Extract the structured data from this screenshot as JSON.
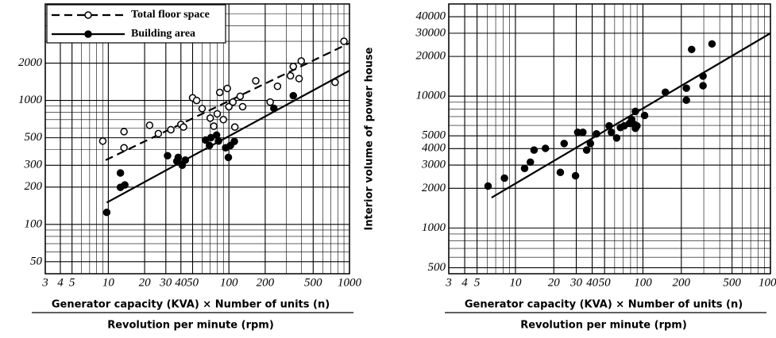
{
  "chart_data": [
    {
      "type": "scatter",
      "xscale": "log",
      "yscale": "log",
      "grid": true,
      "legend": "upper left",
      "xlabel": "Generator capacity (KVA) × Number of units (n)",
      "xlabel_denominator": "Revolution per minute (rpm)",
      "xlim": [
        3,
        1000
      ],
      "xticks": [
        3,
        4,
        5,
        10,
        20,
        30,
        40,
        50,
        100,
        200,
        500,
        1000
      ],
      "xminor": [
        6,
        7,
        8,
        9,
        60,
        70,
        80,
        90,
        300,
        400,
        600,
        700,
        800,
        900
      ],
      "ylim": [
        40,
        6000
      ],
      "yticks": [
        50,
        100,
        200,
        300,
        500,
        1000,
        2000
      ],
      "yminor": [
        60,
        70,
        80,
        90,
        400,
        600,
        700,
        800,
        900,
        3000,
        4000,
        5000
      ],
      "series": [
        {
          "name": "Total floor space",
          "color": "#000000",
          "marker": "open",
          "line": "dashed",
          "x": [
            9,
            13.5,
            13.5,
            22,
            26,
            33,
            40,
            42,
            50,
            54,
            60,
            70,
            75,
            80,
            84,
            90,
            97,
            100,
            108,
            112,
            124,
            130,
            167,
            220,
            253,
            324,
            342,
            398,
            382,
            760,
            900
          ],
          "values": [
            470,
            560,
            415,
            630,
            540,
            580,
            640,
            610,
            1050,
            1000,
            860,
            720,
            620,
            780,
            1160,
            700,
            1250,
            890,
            970,
            610,
            1080,
            890,
            1440,
            970,
            1300,
            1580,
            1880,
            2080,
            1500,
            1400,
            3000
          ],
          "fit_x": [
            9.5,
            1000
          ],
          "fit_y": [
            330,
            2900
          ]
        },
        {
          "name": "Building area",
          "color": "#000000",
          "marker": "filled",
          "line": "solid",
          "x": [
            9.7,
            12.6,
            12.6,
            13.7,
            31,
            37,
            38,
            41,
            43.5,
            64,
            69,
            71,
            79,
            82,
            94,
            99,
            103,
            111,
            236,
            342
          ],
          "values": [
            125,
            199,
            260,
            208,
            358,
            323,
            347,
            300,
            330,
            479,
            433,
            501,
            525,
            470,
            415,
            347,
            433,
            467,
            864,
            1091
          ],
          "fit_x": [
            9.7,
            1000
          ],
          "fit_y": [
            150,
            1740
          ]
        }
      ]
    },
    {
      "type": "scatter",
      "xscale": "log",
      "yscale": "log",
      "grid": true,
      "ylabel": "Interior volume of power house",
      "xlabel": "Generator capacity (KVA) × Number of units (n)",
      "xlabel_denominator": "Revolution per minute (rpm)",
      "xlim": [
        3,
        1000
      ],
      "xticks": [
        3,
        4,
        5,
        10,
        20,
        30,
        40,
        50,
        100,
        200,
        500,
        1000
      ],
      "xminor": [
        6,
        7,
        8,
        9,
        60,
        70,
        80,
        90,
        300,
        400,
        600,
        700,
        800,
        900
      ],
      "ylim": [
        450,
        50000
      ],
      "yticks": [
        500,
        1000,
        2000,
        3000,
        4000,
        5000,
        10000,
        20000,
        30000,
        40000
      ],
      "yminor": [
        600,
        700,
        800,
        900,
        6000,
        7000,
        8000,
        9000
      ],
      "series": [
        {
          "color": "#000000",
          "marker": "filled",
          "line": "solid",
          "x": [
            6.1,
            8.2,
            11.8,
            13.1,
            14,
            17.2,
            22.5,
            24.1,
            29.6,
            30.8,
            33.8,
            36.2,
            38.7,
            43.2,
            54.3,
            56.6,
            62.2,
            66.6,
            71.3,
            78.4,
            81.6,
            85,
            87.3,
            89.7,
            103,
            150,
            219,
            219,
            241,
            296,
            296,
            348,
            87.3
          ],
          "values": [
            2080,
            2390,
            2830,
            3160,
            3900,
            4020,
            2640,
            4370,
            2490,
            5320,
            5320,
            3900,
            4370,
            5170,
            5950,
            5320,
            4820,
            5780,
            5950,
            6210,
            6650,
            6120,
            5700,
            5950,
            7140,
            10700,
            9320,
            11500,
            22600,
            14200,
            12000,
            24900,
            7660
          ],
          "fit_x": [
            6.5,
            1000
          ],
          "fit_y": [
            1700,
            30000
          ]
        }
      ]
    }
  ]
}
